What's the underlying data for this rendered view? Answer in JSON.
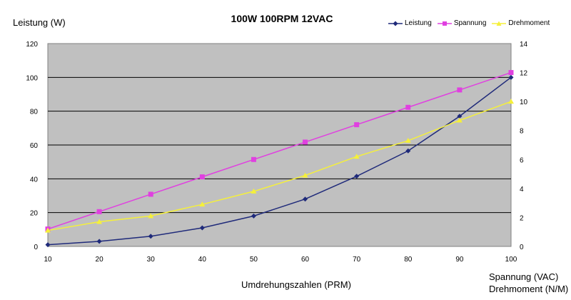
{
  "chart_data": {
    "type": "line",
    "title": "100W 100RPM 12VAC",
    "xlabel": "Umdrehungszahlen (PRM)",
    "ylabel": "Leistung (W)",
    "y2label_line1": "Spannung (VAC)",
    "y2label_line2": "Drehmoment (N/M)",
    "x": [
      10,
      20,
      30,
      40,
      50,
      60,
      70,
      80,
      90,
      100
    ],
    "xlim": [
      10,
      100
    ],
    "ylim": [
      0,
      120
    ],
    "y2lim": [
      0,
      14
    ],
    "yticks": [
      0,
      20,
      40,
      60,
      80,
      100,
      120
    ],
    "y2ticks": [
      0,
      2,
      4,
      6,
      8,
      10,
      12,
      14
    ],
    "grid": true,
    "legend_position": "top-right",
    "series": [
      {
        "name": "Leistung",
        "axis": "left",
        "color": "#1f2a7a",
        "marker": "diamond",
        "values": [
          1,
          3,
          6,
          11,
          18,
          28,
          41.5,
          56.5,
          77,
          100
        ]
      },
      {
        "name": "Spannung",
        "axis": "right",
        "color": "#e040e0",
        "marker": "square",
        "values": [
          1.2,
          2.4,
          3.6,
          4.8,
          6.0,
          7.2,
          8.4,
          9.6,
          10.8,
          12.0
        ]
      },
      {
        "name": "Drehmoment",
        "axis": "right",
        "color": "#f5f03a",
        "marker": "triangle",
        "values": [
          1.1,
          1.7,
          2.1,
          2.9,
          3.8,
          4.9,
          6.2,
          7.3,
          8.7,
          10.0
        ]
      }
    ]
  }
}
